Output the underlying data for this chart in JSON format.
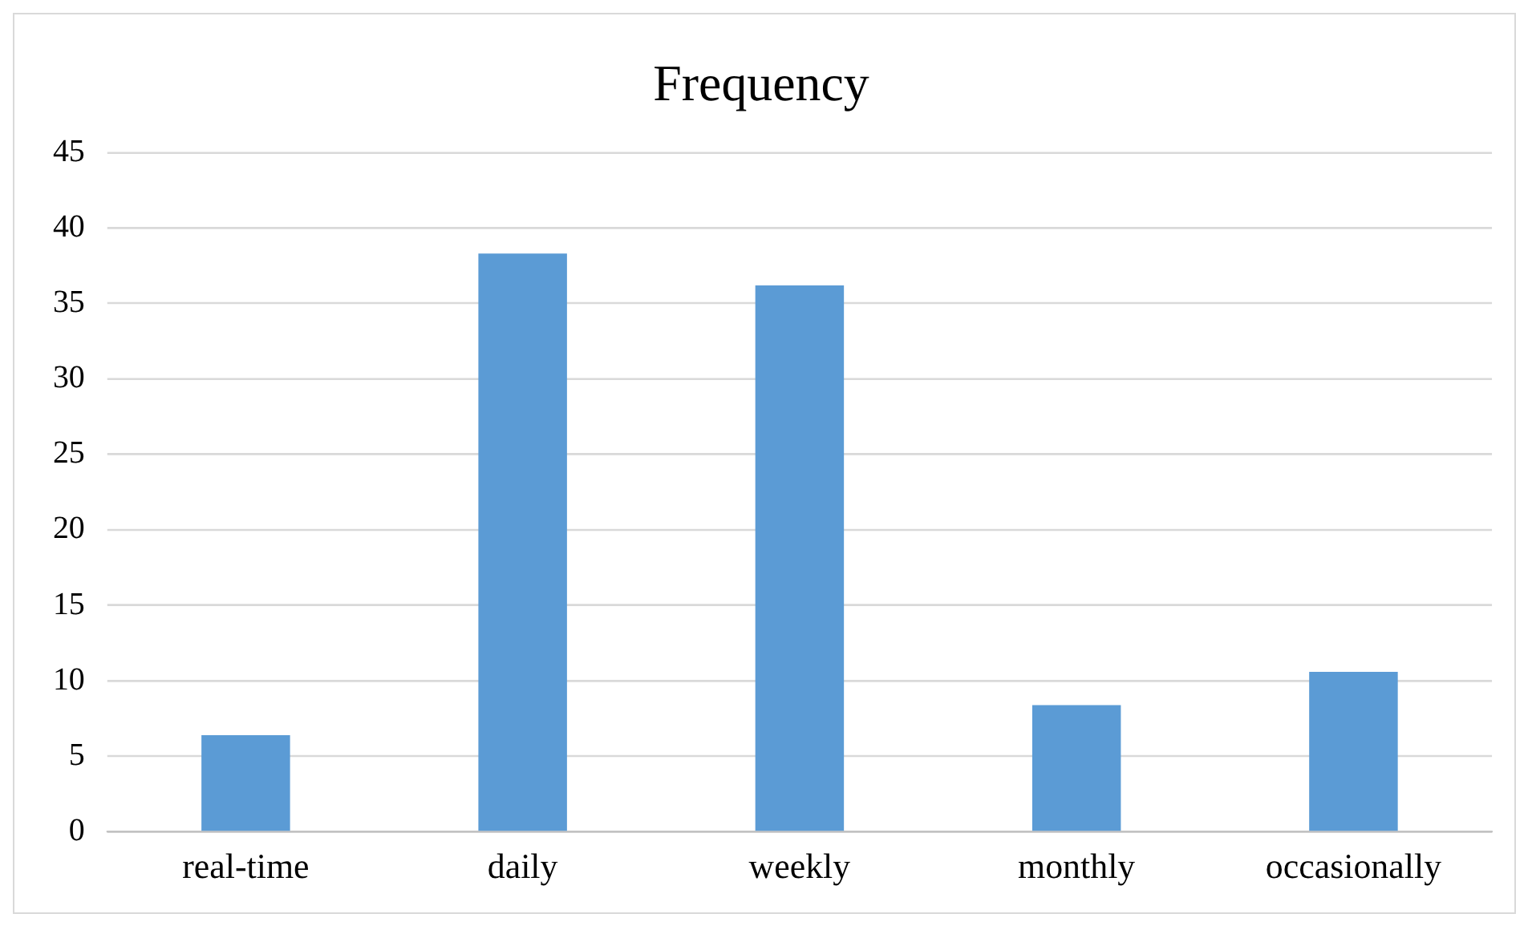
{
  "chart_data": {
    "type": "bar",
    "title": "Frequency",
    "categories": [
      "real-time",
      "daily",
      "weekly",
      "monthly",
      "occasionally"
    ],
    "values": [
      6.4,
      38.3,
      36.2,
      8.4,
      10.6
    ],
    "color": "#5b9bd5",
    "ylim": [
      0,
      45
    ],
    "yticks": [
      0,
      5,
      10,
      15,
      20,
      25,
      30,
      35,
      40,
      45
    ],
    "grid": "y",
    "legend": false
  }
}
